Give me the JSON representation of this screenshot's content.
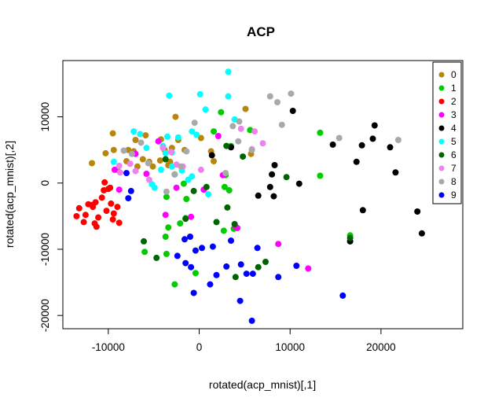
{
  "chart_data": {
    "type": "scatter",
    "title": "ACP",
    "xlabel": "rotated(acp_mnist)[,1]",
    "ylabel": "rotated(acp_mnist)[,2]",
    "xlim": [
      -15000,
      29000
    ],
    "ylim": [
      -22000,
      18500
    ],
    "x_ticks": [
      -10000,
      0,
      10000,
      20000
    ],
    "x_tick_labels": [
      "-10000",
      "0",
      "10000",
      "20000"
    ],
    "y_ticks": [
      -20000,
      -10000,
      0,
      10000
    ],
    "y_tick_labels": [
      "-20000",
      "-10000",
      "0",
      "10000"
    ],
    "grid": false,
    "legend_position": "top-right",
    "series": [
      {
        "name": "0",
        "color": "#b8860b",
        "points": [
          [
            -10300,
            4500
          ],
          [
            -9500,
            7500
          ],
          [
            -9400,
            5000
          ],
          [
            -9000,
            2000
          ],
          [
            -8000,
            3300
          ],
          [
            -7800,
            5000
          ],
          [
            -7200,
            4800
          ],
          [
            -7000,
            6500
          ],
          [
            -6800,
            2500
          ],
          [
            -6200,
            3600
          ],
          [
            -5900,
            7200
          ],
          [
            -5500,
            3200
          ],
          [
            -5100,
            2500
          ],
          [
            -4300,
            3400
          ],
          [
            -4200,
            6600
          ],
          [
            -3800,
            5000
          ],
          [
            -3400,
            2700
          ],
          [
            -3200,
            3200
          ],
          [
            -3000,
            5300
          ],
          [
            -2600,
            10000
          ],
          [
            -2300,
            6500
          ],
          [
            -1600,
            5000
          ],
          [
            200,
            6800
          ],
          [
            1300,
            4800
          ],
          [
            1600,
            3300
          ],
          [
            5100,
            11200
          ],
          [
            5700,
            4400
          ],
          [
            -11800,
            3000
          ]
        ]
      },
      {
        "name": "1",
        "color": "#00cc00",
        "points": [
          [
            2400,
            10700
          ],
          [
            1600,
            7800
          ],
          [
            3500,
            5600
          ],
          [
            5600,
            8000
          ],
          [
            2900,
            1200
          ],
          [
            2800,
            -600
          ],
          [
            3300,
            -1100
          ],
          [
            3800,
            -6900
          ],
          [
            2700,
            -7200
          ],
          [
            -1500,
            -5300
          ],
          [
            -1400,
            -2400
          ],
          [
            -2100,
            -6100
          ],
          [
            -3400,
            -6700
          ],
          [
            -3700,
            -8100
          ],
          [
            -3600,
            -10700
          ],
          [
            -6000,
            -10400
          ],
          [
            -3600,
            -2100
          ],
          [
            -1700,
            -100
          ],
          [
            -400,
            -13600
          ],
          [
            -2700,
            -15300
          ],
          [
            13300,
            7600
          ],
          [
            13300,
            1100
          ],
          [
            16600,
            -7900
          ]
        ]
      },
      {
        "name": "2",
        "color": "#ff0000",
        "points": [
          [
            -13500,
            -5000
          ],
          [
            -13200,
            -3800
          ],
          [
            -12700,
            -5900
          ],
          [
            -12500,
            -4800
          ],
          [
            -12200,
            -3200
          ],
          [
            -11800,
            -3300
          ],
          [
            -11700,
            -3600
          ],
          [
            -11500,
            -6100
          ],
          [
            -11400,
            -2900
          ],
          [
            -11300,
            -6600
          ],
          [
            -11100,
            -5200
          ],
          [
            -10700,
            -2200
          ],
          [
            -10500,
            -1100
          ],
          [
            -10400,
            100
          ],
          [
            -10200,
            -4200
          ],
          [
            -10000,
            -900
          ],
          [
            -9800,
            -700
          ],
          [
            -9500,
            -5500
          ],
          [
            -9400,
            -4600
          ],
          [
            -9000,
            -3600
          ],
          [
            -8800,
            -6000
          ],
          [
            -9700,
            -3100
          ]
        ]
      },
      {
        "name": "3",
        "color": "#ff00ff",
        "points": [
          [
            -9300,
            2000
          ],
          [
            -8800,
            -1000
          ],
          [
            -7000,
            4400
          ],
          [
            -4500,
            6300
          ],
          [
            -3700,
            -4800
          ],
          [
            -2500,
            -700
          ],
          [
            -900,
            -5100
          ],
          [
            500,
            -1000
          ],
          [
            2100,
            7100
          ],
          [
            2600,
            1200
          ],
          [
            4000,
            -6600
          ],
          [
            4200,
            -6800
          ],
          [
            8700,
            -9200
          ],
          [
            12000,
            -12900
          ],
          [
            -5800,
            1400
          ]
        ]
      },
      {
        "name": "4",
        "color": "#000000",
        "points": [
          [
            10300,
            10900
          ],
          [
            8300,
            2700
          ],
          [
            8000,
            1300
          ],
          [
            7800,
            -600
          ],
          [
            8200,
            -2000
          ],
          [
            6500,
            -1900
          ],
          [
            11000,
            -100
          ],
          [
            14700,
            5800
          ],
          [
            17300,
            3200
          ],
          [
            17900,
            5700
          ],
          [
            18000,
            -4100
          ],
          [
            19100,
            6700
          ],
          [
            19300,
            8700
          ],
          [
            21000,
            5400
          ],
          [
            21600,
            1600
          ],
          [
            24000,
            -4300
          ],
          [
            24500,
            -7600
          ],
          [
            16600,
            -8800
          ],
          [
            1400,
            4200
          ],
          [
            3500,
            5400
          ]
        ]
      },
      {
        "name": "5",
        "color": "#00ffff",
        "points": [
          [
            3200,
            16800
          ],
          [
            100,
            13400
          ],
          [
            3200,
            13100
          ],
          [
            -3300,
            13200
          ],
          [
            700,
            11100
          ],
          [
            3900,
            9600
          ],
          [
            -800,
            7800
          ],
          [
            -300,
            7300
          ],
          [
            -7200,
            7800
          ],
          [
            -6500,
            7400
          ],
          [
            -3500,
            7000
          ],
          [
            -2300,
            6900
          ],
          [
            -5800,
            5300
          ],
          [
            -4000,
            5600
          ],
          [
            -3700,
            4500
          ],
          [
            -3000,
            4600
          ],
          [
            -9400,
            3200
          ],
          [
            -3000,
            2500
          ],
          [
            -4200,
            2000
          ],
          [
            -5200,
            -200
          ],
          [
            -4900,
            -700
          ],
          [
            -1900,
            1900
          ],
          [
            -1200,
            500
          ],
          [
            -800,
            1000
          ],
          [
            1000,
            -1700
          ]
        ]
      },
      {
        "name": "6",
        "color": "#006400",
        "points": [
          [
            -3700,
            3600
          ],
          [
            -2700,
            1300
          ],
          [
            -600,
            -1200
          ],
          [
            800,
            -600
          ],
          [
            3000,
            5600
          ],
          [
            4800,
            4000
          ],
          [
            -1500,
            -5400
          ],
          [
            1900,
            -5900
          ],
          [
            3100,
            -3700
          ],
          [
            3900,
            -6200
          ],
          [
            -6100,
            -8800
          ],
          [
            -4700,
            -11300
          ],
          [
            4000,
            -14200
          ],
          [
            7300,
            -11900
          ],
          [
            6500,
            -12700
          ],
          [
            9600,
            900
          ],
          [
            16600,
            -8300
          ]
        ]
      },
      {
        "name": "7",
        "color": "#ee82ee",
        "points": [
          [
            -8700,
            1600
          ],
          [
            -7600,
            2900
          ],
          [
            -7000,
            1800
          ],
          [
            -5500,
            500
          ],
          [
            -4000,
            5300
          ],
          [
            -3100,
            4700
          ],
          [
            -2500,
            2800
          ],
          [
            -1800,
            2500
          ],
          [
            200,
            2000
          ],
          [
            4600,
            8200
          ],
          [
            5800,
            5100
          ],
          [
            6100,
            7800
          ],
          [
            7000,
            6000
          ],
          [
            -8800,
            2600
          ]
        ]
      },
      {
        "name": "8",
        "color": "#a9a9a9",
        "points": [
          [
            -8300,
            4900
          ],
          [
            -7400,
            4400
          ],
          [
            -5600,
            3000
          ],
          [
            -3600,
            -1300
          ],
          [
            -2700,
            1300
          ],
          [
            -2000,
            2500
          ],
          [
            -1400,
            4800
          ],
          [
            -500,
            9100
          ],
          [
            2900,
            1500
          ],
          [
            3700,
            8600
          ],
          [
            4400,
            9300
          ],
          [
            5800,
            5000
          ],
          [
            7800,
            13100
          ],
          [
            8600,
            12200
          ],
          [
            9100,
            8800
          ],
          [
            10100,
            13500
          ],
          [
            15400,
            6800
          ],
          [
            21900,
            6500
          ],
          [
            4300,
            6300
          ],
          [
            -6400,
            6100
          ]
        ]
      },
      {
        "name": "9",
        "color": "#0000ff",
        "points": [
          [
            -8000,
            1500
          ],
          [
            -7800,
            -2300
          ],
          [
            -1600,
            -8500
          ],
          [
            -1000,
            -8100
          ],
          [
            -400,
            -10200
          ],
          [
            -2400,
            -11000
          ],
          [
            -1500,
            -12100
          ],
          [
            -900,
            -12700
          ],
          [
            -600,
            -16600
          ],
          [
            300,
            -9800
          ],
          [
            1500,
            -9600
          ],
          [
            3500,
            -8700
          ],
          [
            1900,
            -13900
          ],
          [
            1200,
            -15300
          ],
          [
            3000,
            -12600
          ],
          [
            4600,
            -12300
          ],
          [
            4500,
            -17800
          ],
          [
            5200,
            -13700
          ],
          [
            5800,
            -20800
          ],
          [
            5900,
            -13700
          ],
          [
            6400,
            -9800
          ],
          [
            8700,
            -14200
          ],
          [
            10700,
            -12500
          ],
          [
            15800,
            -17000
          ],
          [
            -7500,
            -1200
          ]
        ]
      }
    ]
  }
}
